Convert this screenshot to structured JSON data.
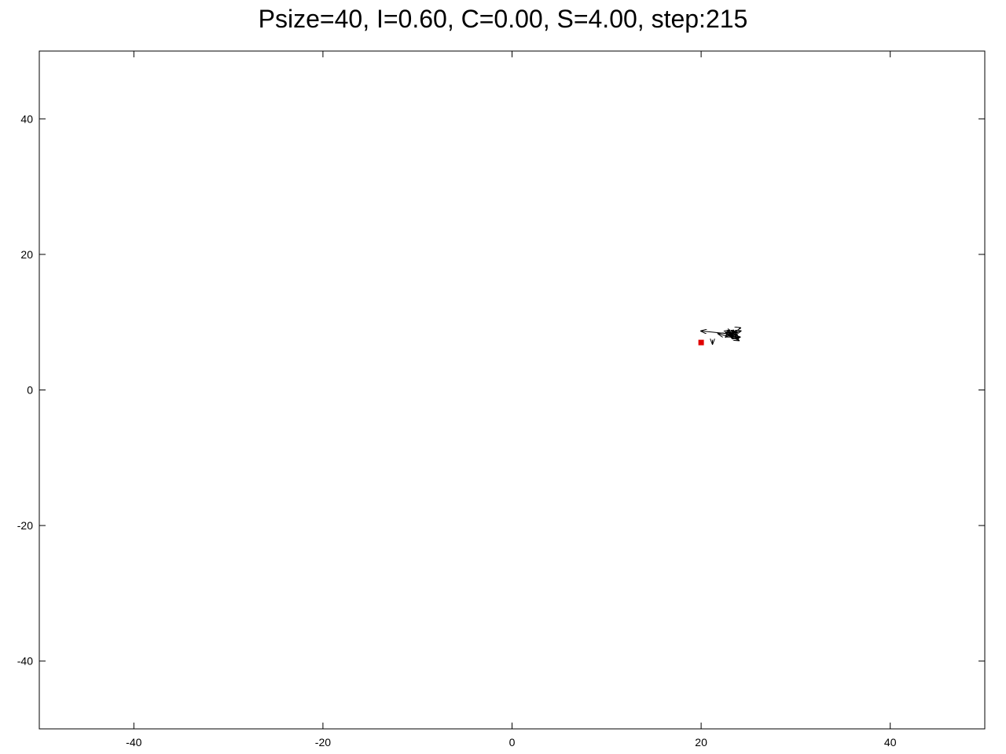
{
  "chart_data": {
    "type": "scatter",
    "title": "Psize=40, I=0.60, C=0.00, S=4.00, step:215",
    "xlabel": "",
    "ylabel": "",
    "xlim": [
      -50,
      50
    ],
    "ylim": [
      -50,
      50
    ],
    "x_ticks": [
      -40,
      -20,
      0,
      20,
      40
    ],
    "y_ticks": [
      -40,
      -20,
      0,
      20,
      40
    ],
    "grid": false,
    "legend": "none",
    "series": [
      {
        "kind": "points",
        "color": "#e00000",
        "points": [
          [
            20.0,
            7.0
          ]
        ]
      },
      {
        "kind": "vectors",
        "color": "#000000",
        "vectors": [
          {
            "x": 22.8,
            "y": 8.3,
            "dx": -2.8,
            "dy": 0.4
          },
          {
            "x": 22.6,
            "y": 8.1,
            "dx": 1.6,
            "dy": 0.6
          },
          {
            "x": 22.9,
            "y": 8.0,
            "dx": 1.1,
            "dy": -0.7
          },
          {
            "x": 22.7,
            "y": 8.2,
            "dx": 1.3,
            "dy": -0.5
          },
          {
            "x": 22.5,
            "y": 8.4,
            "dx": 1.2,
            "dy": 0.2
          },
          {
            "x": 22.8,
            "y": 7.9,
            "dx": 0.6,
            "dy": 0.9
          },
          {
            "x": 23.0,
            "y": 8.6,
            "dx": 0.3,
            "dy": -1.0
          },
          {
            "x": 22.6,
            "y": 8.0,
            "dx": -0.8,
            "dy": 0.3
          },
          {
            "x": 23.2,
            "y": 8.2,
            "dx": 0.6,
            "dy": 0.3
          },
          {
            "x": 22.9,
            "y": 8.5,
            "dx": 0.9,
            "dy": -0.4
          },
          {
            "x": 22.7,
            "y": 7.8,
            "dx": 1.4,
            "dy": 0.0
          },
          {
            "x": 23.1,
            "y": 8.0,
            "dx": 0.8,
            "dy": -0.4
          },
          {
            "x": 22.4,
            "y": 8.3,
            "dx": 0.6,
            "dy": 0.5
          },
          {
            "x": 22.9,
            "y": 8.3,
            "dx": -0.3,
            "dy": -0.5
          },
          {
            "x": 23.0,
            "y": 7.9,
            "dx": 0.5,
            "dy": 0.7
          },
          {
            "x": 21.2,
            "y": 7.4,
            "dx": 0.0,
            "dy": -0.6
          },
          {
            "x": 24.0,
            "y": 9.1,
            "dx": 0.15,
            "dy": 0.05
          },
          {
            "x": 22.7,
            "y": 8.8,
            "dx": 0.4,
            "dy": -0.5
          }
        ]
      }
    ]
  }
}
